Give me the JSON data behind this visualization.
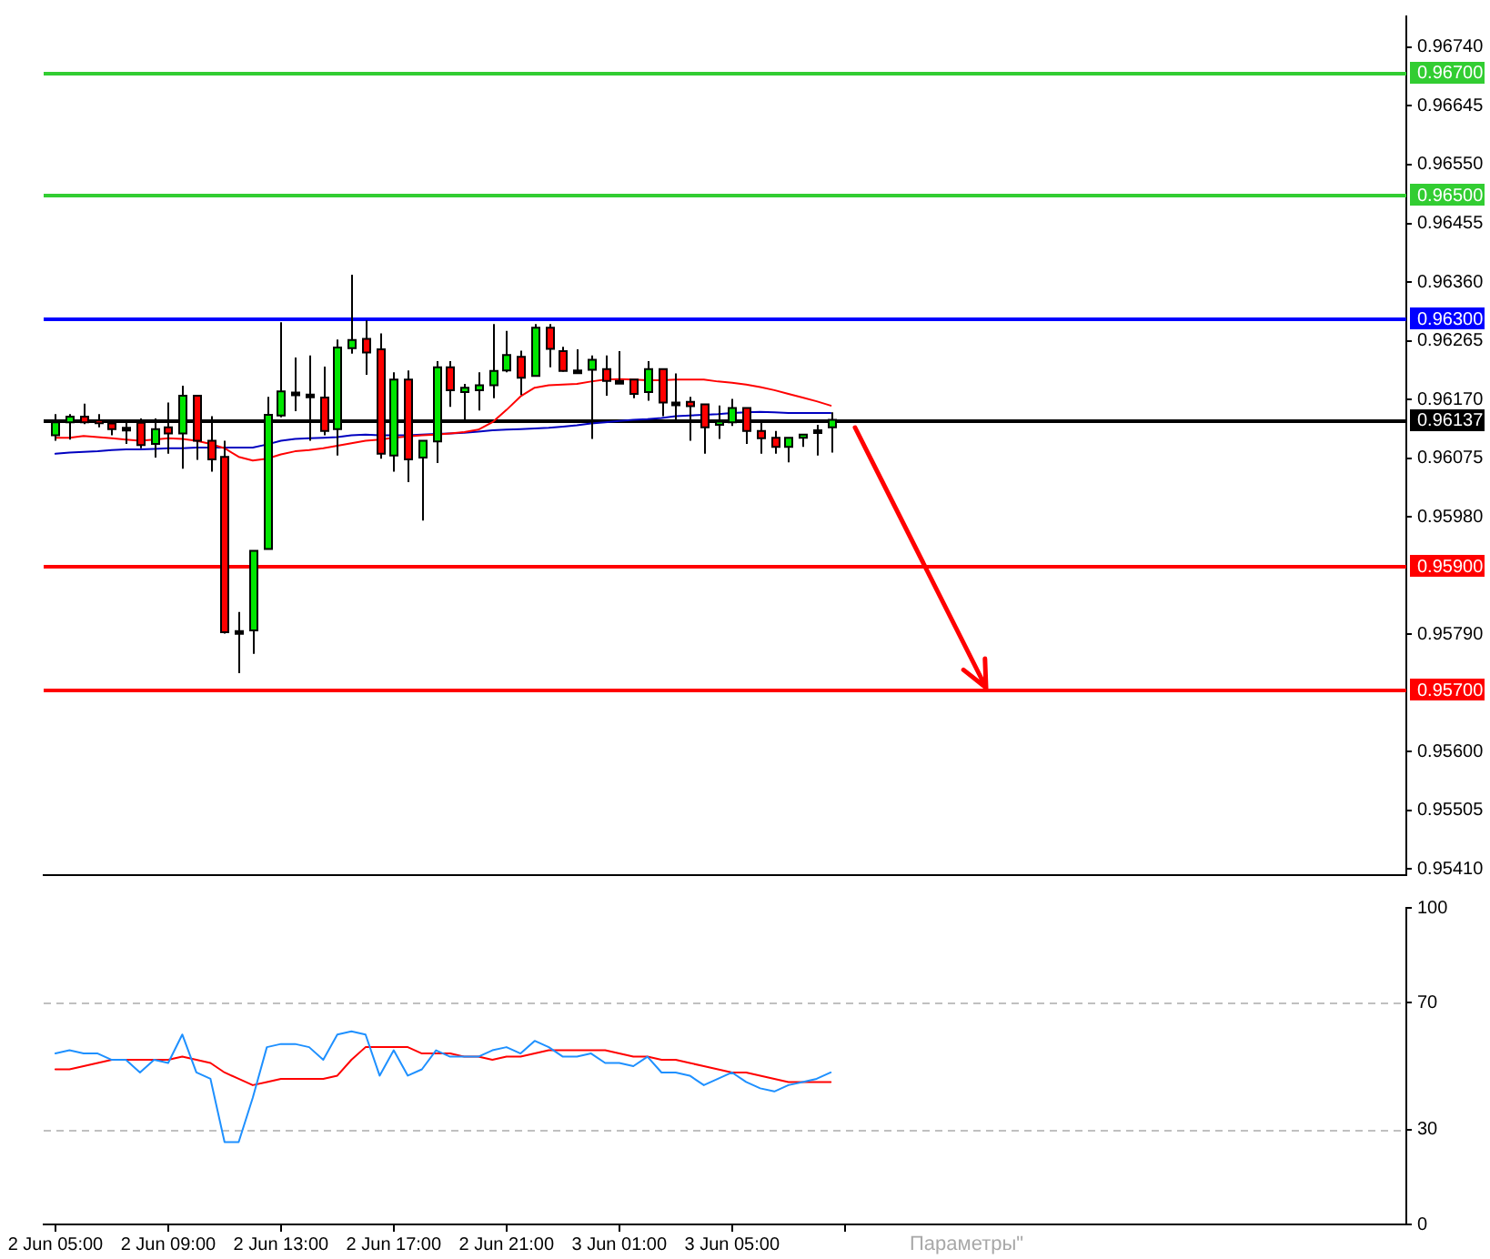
{
  "chart_data": [
    {
      "type": "candlestick",
      "x": [
        "--06-02T05:00",
        "--06-02T05:30",
        "--06-02T06:00",
        "--06-02T06:30",
        "--06-02T07:00",
        "--06-02T07:30",
        "--06-02T08:00",
        "--06-02T08:30",
        "--06-02T09:00",
        "--06-02T09:30",
        "--06-02T10:00",
        "--06-02T10:30",
        "--06-02T11:00",
        "--06-02T11:30",
        "--06-02T12:00",
        "--06-02T12:30",
        "--06-02T13:00",
        "--06-02T13:30",
        "--06-02T14:00",
        "--06-02T14:30",
        "--06-02T15:00",
        "--06-02T15:30",
        "--06-02T16:00",
        "--06-02T16:30",
        "--06-02T17:00",
        "--06-02T17:30",
        "--06-02T18:00",
        "--06-02T18:30",
        "--06-02T19:00",
        "--06-02T19:30",
        "--06-02T20:00",
        "--06-02T20:30",
        "--06-02T21:00",
        "--06-02T21:30",
        "--06-02T22:00",
        "--06-02T22:30",
        "--06-02T23:00",
        "--06-02T23:30",
        "--06-03T00:00",
        "--06-03T00:30",
        "--06-03T01:00",
        "--06-03T01:30",
        "--06-03T02:00",
        "--06-03T02:30",
        "--06-03T03:00",
        "--06-03T03:30",
        "--06-03T04:00",
        "--06-03T04:30",
        "--06-03T05:00",
        "--06-03T05:30",
        "--06-03T06:00",
        "--06-03T06:30",
        "--06-03T07:00",
        "--06-03T07:30",
        "--06-03T08:00",
        "--06-03T08:30"
      ],
      "ohlc": [
        [
          0.96112,
          0.96146,
          0.96103,
          0.96133
        ],
        [
          0.96133,
          0.96146,
          0.96105,
          0.96142
        ],
        [
          0.96142,
          0.96163,
          0.9613,
          0.96133
        ],
        [
          0.96136,
          0.96146,
          0.96125,
          0.96132
        ],
        [
          0.96131,
          0.96136,
          0.96112,
          0.96122
        ],
        [
          0.96124,
          0.96133,
          0.96098,
          0.96124
        ],
        [
          0.96132,
          0.96139,
          0.96091,
          0.96096
        ],
        [
          0.96098,
          0.96139,
          0.96076,
          0.96122
        ],
        [
          0.96125,
          0.96165,
          0.96082,
          0.96115
        ],
        [
          0.96115,
          0.96192,
          0.96058,
          0.96176
        ],
        [
          0.96176,
          0.96177,
          0.96072,
          0.96103
        ],
        [
          0.96103,
          0.96143,
          0.96053,
          0.96073
        ],
        [
          0.96077,
          0.96103,
          0.95791,
          0.95793
        ],
        [
          0.95795,
          0.95826,
          0.95727,
          0.95795
        ],
        [
          0.95796,
          0.95925,
          0.95758,
          0.95925
        ],
        [
          0.95928,
          0.96174,
          0.95928,
          0.96145
        ],
        [
          0.96144,
          0.96295,
          0.96141,
          0.96183
        ],
        [
          0.96181,
          0.96238,
          0.96151,
          0.96181
        ],
        [
          0.96178,
          0.96241,
          0.96103,
          0.96178
        ],
        [
          0.96173,
          0.96223,
          0.96112,
          0.96119
        ],
        [
          0.96122,
          0.96267,
          0.96079,
          0.96254
        ],
        [
          0.96253,
          0.96372,
          0.96244,
          0.96266
        ],
        [
          0.96268,
          0.96298,
          0.9621,
          0.96246
        ],
        [
          0.96251,
          0.96277,
          0.96074,
          0.96082
        ],
        [
          0.96079,
          0.96214,
          0.96053,
          0.96202
        ],
        [
          0.96202,
          0.96217,
          0.96036,
          0.96073
        ],
        [
          0.96076,
          0.96103,
          0.95974,
          0.96103
        ],
        [
          0.96102,
          0.96232,
          0.96067,
          0.96222
        ],
        [
          0.96222,
          0.96232,
          0.96158,
          0.96185
        ],
        [
          0.96182,
          0.96195,
          0.96133,
          0.96189
        ],
        [
          0.96185,
          0.96214,
          0.96152,
          0.96193
        ],
        [
          0.96193,
          0.96292,
          0.96172,
          0.96216
        ],
        [
          0.96217,
          0.96281,
          0.96214,
          0.96242
        ],
        [
          0.96239,
          0.96249,
          0.96177,
          0.96205
        ],
        [
          0.96208,
          0.96292,
          0.96208,
          0.96286
        ],
        [
          0.96286,
          0.96292,
          0.96222,
          0.96252
        ],
        [
          0.96248,
          0.96255,
          0.96215,
          0.96216
        ],
        [
          0.96217,
          0.96251,
          0.96215,
          0.96217
        ],
        [
          0.96218,
          0.96241,
          0.96106,
          0.96234
        ],
        [
          0.96219,
          0.96241,
          0.96176,
          0.962
        ],
        [
          0.962,
          0.96248,
          0.96198,
          0.962
        ],
        [
          0.96202,
          0.96202,
          0.96172,
          0.96179
        ],
        [
          0.96182,
          0.96232,
          0.96168,
          0.96219
        ],
        [
          0.96219,
          0.96219,
          0.96143,
          0.96165
        ],
        [
          0.96165,
          0.96212,
          0.96132,
          0.96165
        ],
        [
          0.96166,
          0.96174,
          0.96103,
          0.96159
        ],
        [
          0.96162,
          0.96162,
          0.96082,
          0.96125
        ],
        [
          0.96129,
          0.9616,
          0.96106,
          0.96134
        ],
        [
          0.96133,
          0.96171,
          0.96127,
          0.96156
        ],
        [
          0.96156,
          0.96156,
          0.96098,
          0.96119
        ],
        [
          0.96119,
          0.96132,
          0.96082,
          0.96107
        ],
        [
          0.96108,
          0.96119,
          0.96082,
          0.96093
        ],
        [
          0.96093,
          0.96108,
          0.96068,
          0.96108
        ],
        [
          0.96108,
          0.96113,
          0.96093,
          0.96113
        ],
        [
          0.9612,
          0.96129,
          0.96079,
          0.9612
        ],
        [
          0.96125,
          0.96149,
          0.96084,
          0.96137
        ]
      ],
      "colors": [
        "#00e600",
        "#00e600",
        "#ff0000",
        "#ff0000",
        "#ff0000",
        "#000000",
        "#ff0000",
        "#00e600",
        "#ff0000",
        "#00e600",
        "#ff0000",
        "#ff0000",
        "#ff0000",
        "#000000",
        "#00e600",
        "#00e600",
        "#00e600",
        "#000000",
        "#000000",
        "#ff0000",
        "#00e600",
        "#00e600",
        "#ff0000",
        "#ff0000",
        "#00e600",
        "#ff0000",
        "#00e600",
        "#00e600",
        "#ff0000",
        "#00e600",
        "#00e600",
        "#00e600",
        "#00e600",
        "#ff0000",
        "#00e600",
        "#ff0000",
        "#ff0000",
        "#000000",
        "#00e600",
        "#ff0000",
        "#000000",
        "#ff0000",
        "#00e600",
        "#ff0000",
        "#000000",
        "#ff0000",
        "#ff0000",
        "#00e600",
        "#00e600",
        "#ff0000",
        "#ff0000",
        "#ff0000",
        "#00e600",
        "#00e600",
        "#000000",
        "#00e600"
      ],
      "series": [
        {
          "type": "line",
          "color": "#ff0000",
          "values": [
            0.96108,
            0.96108,
            0.96111,
            0.96109,
            0.96107,
            0.96105,
            0.96103,
            0.96105,
            0.96107,
            0.96106,
            0.96103,
            0.96098,
            0.96091,
            0.96077,
            0.96071,
            0.96074,
            0.96081,
            0.96086,
            0.96088,
            0.96091,
            0.96095,
            0.96099,
            0.96103,
            0.96105,
            0.96108,
            0.9611,
            0.96112,
            0.96113,
            0.96115,
            0.96117,
            0.96121,
            0.96133,
            0.96153,
            0.96175,
            0.96189,
            0.96193,
            0.96194,
            0.96195,
            0.96199,
            0.96202,
            0.96203,
            0.96202,
            0.96201,
            0.96201,
            0.96202,
            0.96202,
            0.96202,
            0.96199,
            0.96197,
            0.96194,
            0.9619,
            0.96185,
            0.96179,
            0.96173,
            0.96167,
            0.9616
          ]
        },
        {
          "type": "line",
          "color": "#0000c0",
          "values": [
            0.96082,
            0.96084,
            0.96085,
            0.96086,
            0.96088,
            0.96089,
            0.96089,
            0.9609,
            0.96091,
            0.96091,
            0.96092,
            0.96092,
            0.96092,
            0.96092,
            0.96092,
            0.96097,
            0.96103,
            0.96106,
            0.96107,
            0.96108,
            0.96109,
            0.96112,
            0.96113,
            0.96112,
            0.96112,
            0.96112,
            0.96113,
            0.96114,
            0.96115,
            0.96116,
            0.96118,
            0.9612,
            0.96121,
            0.96122,
            0.96123,
            0.96124,
            0.96126,
            0.96128,
            0.96131,
            0.96133,
            0.96135,
            0.96137,
            0.96138,
            0.9614,
            0.96143,
            0.96144,
            0.96145,
            0.96146,
            0.96148,
            0.96149,
            0.9615,
            0.96149,
            0.96148,
            0.96148,
            0.96148,
            0.96148
          ]
        }
      ],
      "xlim": [
        "--06-02T04:35",
        "--06-04T04:55"
      ],
      "ylim": [
        0.954,
        0.9679
      ],
      "yticks": [
        {
          "value": 0.9541,
          "label": "0.95410"
        },
        {
          "value": 0.95505,
          "label": "0.95505"
        },
        {
          "value": 0.956,
          "label": "0.95600"
        },
        {
          "value": 0.9579,
          "label": "0.95790"
        },
        {
          "value": 0.9598,
          "label": "0.95980"
        },
        {
          "value": 0.96075,
          "label": "0.96075"
        },
        {
          "value": 0.9617,
          "label": "0.96170"
        },
        {
          "value": 0.96265,
          "label": "0.96265"
        },
        {
          "value": 0.9636,
          "label": "0.96360"
        },
        {
          "value": 0.96455,
          "label": "0.96455"
        },
        {
          "value": 0.9655,
          "label": "0.96550"
        },
        {
          "value": 0.96645,
          "label": "0.96645"
        },
        {
          "value": 0.9674,
          "label": "0.96740"
        }
      ],
      "ref_lines": [
        {
          "axis": "y",
          "value": 0.967,
          "label": "0.96700",
          "color": "#32cd32"
        },
        {
          "axis": "y",
          "value": 0.965,
          "label": "0.96500",
          "color": "#32cd32"
        },
        {
          "axis": "y",
          "value": 0.963,
          "label": "0.96300",
          "color": "#0000ff"
        },
        {
          "axis": "y",
          "value": 0.96137,
          "label": "0.96137",
          "color": "#000000"
        },
        {
          "axis": "y",
          "value": 0.959,
          "label": "0.95900",
          "color": "#ff0000"
        },
        {
          "axis": "y",
          "value": 0.957,
          "label": "0.95700",
          "color": "#ff0000"
        }
      ],
      "tick_labels": "y",
      "marker": "none"
    },
    {
      "type": "line",
      "x": [
        "--06-02T05:00",
        "--06-02T05:30",
        "--06-02T06:00",
        "--06-02T06:30",
        "--06-02T07:00",
        "--06-02T07:30",
        "--06-02T08:00",
        "--06-02T08:30",
        "--06-02T09:00",
        "--06-02T09:30",
        "--06-02T10:00",
        "--06-02T10:30",
        "--06-02T11:00",
        "--06-02T11:30",
        "--06-02T12:00",
        "--06-02T12:30",
        "--06-02T13:00",
        "--06-02T13:30",
        "--06-02T14:00",
        "--06-02T14:30",
        "--06-02T15:00",
        "--06-02T15:30",
        "--06-02T16:00",
        "--06-02T16:30",
        "--06-02T17:00",
        "--06-02T17:30",
        "--06-02T18:00",
        "--06-02T18:30",
        "--06-02T19:00",
        "--06-02T19:30",
        "--06-02T20:00",
        "--06-02T20:30",
        "--06-02T21:00",
        "--06-02T21:30",
        "--06-02T22:00",
        "--06-02T22:30",
        "--06-02T23:00",
        "--06-02T23:30",
        "--06-03T00:00",
        "--06-03T00:30",
        "--06-03T01:00",
        "--06-03T01:30",
        "--06-03T02:00",
        "--06-03T02:30",
        "--06-03T03:00",
        "--06-03T03:30",
        "--06-03T04:00",
        "--06-03T04:30",
        "--06-03T05:00",
        "--06-03T05:30",
        "--06-03T06:00",
        "--06-03T06:30",
        "--06-03T07:00",
        "--06-03T07:30",
        "--06-03T08:00",
        "--06-03T08:30"
      ],
      "series": [
        {
          "color": "#1e90ff",
          "values": [
            54,
            55,
            54,
            54,
            52,
            52,
            48,
            52,
            51,
            60,
            48,
            46,
            26,
            26,
            40,
            56,
            57,
            57,
            56,
            52,
            60,
            61,
            60,
            47,
            55,
            47,
            49,
            55,
            53,
            53,
            53,
            55,
            56,
            54,
            58,
            56,
            53,
            53,
            54,
            51,
            51,
            50,
            53,
            48,
            48,
            47,
            44,
            46,
            48,
            45,
            43,
            42,
            44,
            45,
            46,
            48
          ]
        },
        {
          "color": "#ff0000",
          "values": [
            49,
            49,
            50,
            51,
            52,
            52,
            52,
            52,
            52,
            53,
            52,
            51,
            48,
            46,
            44,
            45,
            46,
            46,
            46,
            46,
            47,
            52,
            56,
            56,
            56,
            56,
            54,
            54,
            54,
            53,
            53,
            52,
            53,
            53,
            54,
            55,
            55,
            55,
            55,
            55,
            54,
            53,
            53,
            52,
            52,
            51,
            50,
            49,
            48,
            48,
            47,
            46,
            45,
            45,
            45,
            45
          ]
        }
      ],
      "xlim": [
        "--06-02T04:35",
        "--06-04T04:55"
      ],
      "xticks": [
        {
          "value": "--06-02T05:00",
          "label": "2 Jun 05:00"
        },
        {
          "value": "--06-02T09:00",
          "label": "2 Jun 09:00"
        },
        {
          "value": "--06-02T13:00",
          "label": "2 Jun 13:00"
        },
        {
          "value": "--06-02T17:00",
          "label": "2 Jun 17:00"
        },
        {
          "value": "--06-02T21:00",
          "label": "2 Jun 21:00"
        },
        {
          "value": "--06-03T01:00",
          "label": "3 Jun 01:00"
        },
        {
          "value": "--06-03T05:00",
          "label": "3 Jun 05:00"
        },
        {
          "value": "--06-03T09:00",
          "label": null
        }
      ],
      "ylim": [
        0,
        100
      ],
      "yticks": [
        0,
        30,
        70,
        100
      ],
      "ref_lines": [
        {
          "axis": "y",
          "value": 70,
          "color": "#c0c0c0",
          "line_style": "dashed"
        },
        {
          "axis": "y",
          "value": 30,
          "color": "#c0c0c0",
          "line_style": "dashed"
        }
      ],
      "marker": "none",
      "annotations": [
        "Параметры\""
      ]
    }
  ]
}
